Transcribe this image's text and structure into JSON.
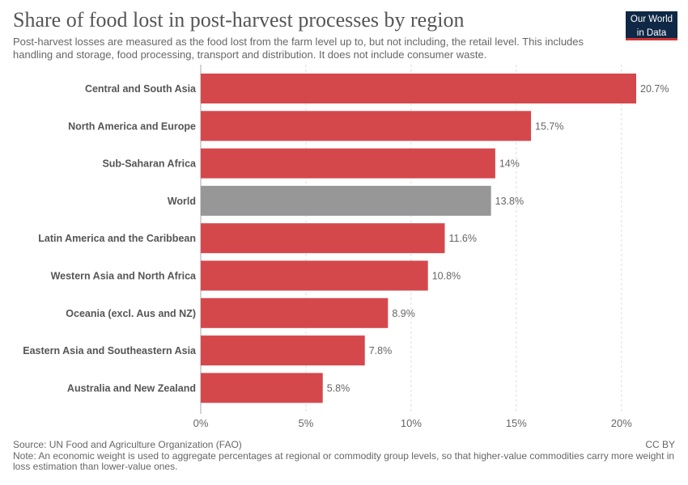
{
  "header": {
    "title": "Share of food lost in post-harvest processes by region",
    "subtitle": "Post-harvest losses are measured as the food lost from the farm level up to, but not including, the retail level. This includes handling and storage, food processing, transport and distribution. It does not include consumer waste.",
    "logo_line1": "Our World",
    "logo_line2": "in Data"
  },
  "footer": {
    "source": "Source: UN Food and Agriculture Organization (FAO)",
    "license": "CC BY",
    "note": "Note: An economic weight is used to aggregate percentages at regional or commodity group levels, so that higher-value commodities carry more weight in loss estimation than lower-value ones."
  },
  "colors": {
    "bar": "#d4484c",
    "highlight": "#979797",
    "label": "#555555",
    "value": "#666666",
    "grid": "#dddddd"
  },
  "chart_data": {
    "type": "bar",
    "orientation": "horizontal",
    "categories": [
      "Central and South Asia",
      "North America and Europe",
      "Sub-Saharan Africa",
      "World",
      "Latin America and the Caribbean",
      "Western Asia and North Africa",
      "Oceania (excl. Aus and NZ)",
      "Eastern Asia and Southeastern Asia",
      "Australia and New Zealand"
    ],
    "values": [
      20.7,
      15.7,
      14,
      13.8,
      11.6,
      10.8,
      8.9,
      7.8,
      5.8
    ],
    "value_labels": [
      "20.7%",
      "15.7%",
      "14%",
      "13.8%",
      "11.6%",
      "10.8%",
      "8.9%",
      "7.8%",
      "5.8%"
    ],
    "highlighted_category": "World",
    "xlim": [
      0,
      20.7
    ],
    "xticks": [
      0,
      5,
      10,
      15,
      20
    ],
    "xtick_labels": [
      "0%",
      "5%",
      "10%",
      "15%",
      "20%"
    ],
    "grid": "vertical-dashed"
  }
}
